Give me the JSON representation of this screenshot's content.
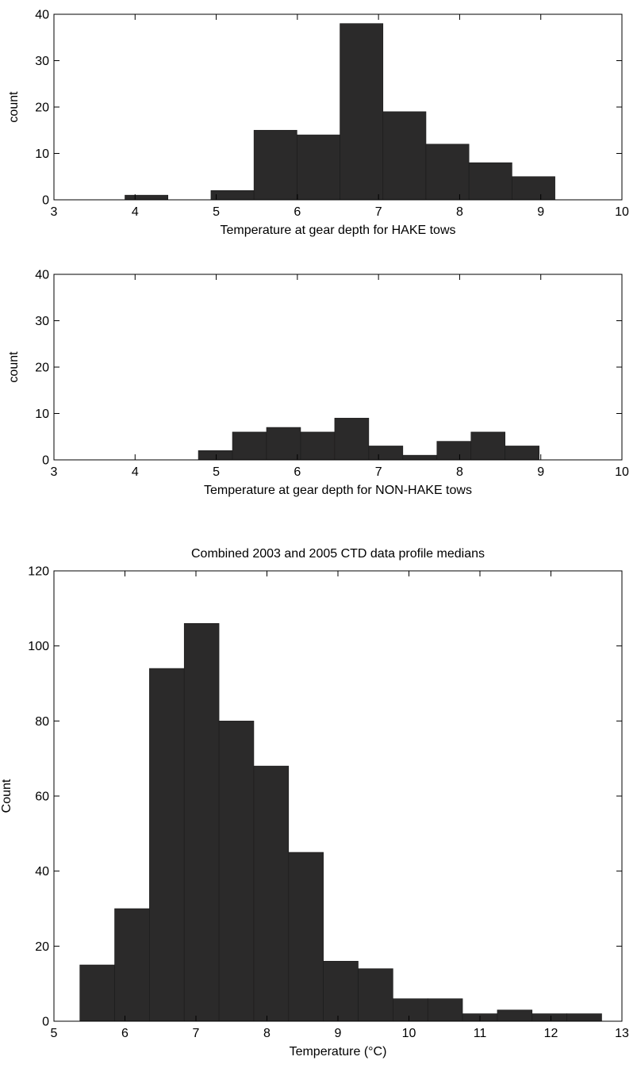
{
  "colors": {
    "bar_fill": "#2b2a2a",
    "axis": "#000000",
    "background": "#ffffff"
  },
  "chart_data": [
    {
      "type": "bar",
      "title": "",
      "xlabel": "Temperature at gear depth for HAKE tows",
      "ylabel": "count",
      "xlim": [
        3,
        10
      ],
      "ylim": [
        0,
        40
      ],
      "xticks": [
        3,
        4,
        5,
        6,
        7,
        8,
        9,
        10
      ],
      "yticks": [
        0,
        10,
        20,
        30,
        40
      ],
      "bin_width": 0.53,
      "bin_centers": [
        4.14,
        4.67,
        5.2,
        5.73,
        6.26,
        6.79,
        7.32,
        7.85,
        8.38,
        8.91
      ],
      "values": [
        1,
        0,
        2,
        15,
        14,
        38,
        19,
        12,
        8,
        5
      ],
      "grid": false
    },
    {
      "type": "bar",
      "title": "",
      "xlabel": "Temperature at gear depth for NON-HAKE tows",
      "ylabel": "count",
      "xlim": [
        3,
        10
      ],
      "ylim": [
        0,
        40
      ],
      "xticks": [
        3,
        4,
        5,
        6,
        7,
        8,
        9,
        10
      ],
      "yticks": [
        0,
        10,
        20,
        30,
        40
      ],
      "bin_width": 0.42,
      "bin_centers": [
        4.99,
        5.41,
        5.83,
        6.25,
        6.67,
        7.09,
        7.51,
        7.93,
        8.35,
        8.77
      ],
      "values": [
        2,
        6,
        7,
        6,
        9,
        3,
        1,
        4,
        6,
        3
      ],
      "grid": false
    },
    {
      "type": "bar",
      "title": "Combined 2003 and 2005 CTD data profile medians",
      "xlabel": "Temperature (°C)",
      "ylabel": "Count",
      "xlim": [
        5,
        13
      ],
      "ylim": [
        0,
        120
      ],
      "xticks": [
        5,
        6,
        7,
        8,
        9,
        10,
        11,
        12,
        13
      ],
      "yticks": [
        0,
        20,
        40,
        60,
        80,
        100,
        120
      ],
      "bin_width": 0.49,
      "bin_centers": [
        5.61,
        6.1,
        6.59,
        7.08,
        7.57,
        8.06,
        8.55,
        9.04,
        9.53,
        10.02,
        10.51,
        11.0,
        11.49,
        11.98,
        12.47
      ],
      "values": [
        15,
        30,
        94,
        106,
        80,
        68,
        45,
        16,
        14,
        6,
        6,
        2,
        3,
        2,
        2
      ],
      "grid": false
    }
  ]
}
